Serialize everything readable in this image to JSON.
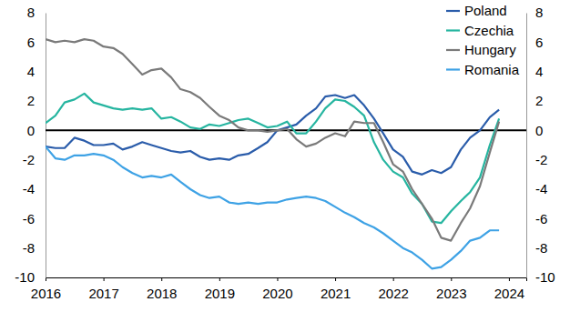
{
  "chart_data": {
    "type": "line",
    "x": [
      2016,
      2016.17,
      2016.33,
      2016.5,
      2016.67,
      2016.83,
      2017,
      2017.17,
      2017.33,
      2017.5,
      2017.67,
      2017.83,
      2018,
      2018.17,
      2018.33,
      2018.5,
      2018.67,
      2018.83,
      2019,
      2019.17,
      2019.33,
      2019.5,
      2019.67,
      2019.83,
      2020,
      2020.17,
      2020.33,
      2020.5,
      2020.67,
      2020.83,
      2021,
      2021.17,
      2021.33,
      2021.5,
      2021.67,
      2021.83,
      2022,
      2022.17,
      2022.33,
      2022.5,
      2022.67,
      2022.83,
      2023,
      2023.17,
      2023.33,
      2023.5,
      2023.67,
      2023.83
    ],
    "series": [
      {
        "name": "Poland",
        "color": "#2a5caa",
        "values": [
          -1.1,
          -1.2,
          -1.2,
          -0.5,
          -0.7,
          -1.0,
          -1.0,
          -0.9,
          -1.3,
          -1.1,
          -0.8,
          -1.0,
          -1.2,
          -1.4,
          -1.5,
          -1.4,
          -1.8,
          -2.0,
          -1.9,
          -2.0,
          -1.7,
          -1.6,
          -1.2,
          -0.8,
          0.0,
          0.2,
          0.4,
          1.0,
          1.5,
          2.3,
          2.4,
          2.2,
          2.4,
          1.7,
          0.8,
          -0.2,
          -1.3,
          -1.8,
          -2.8,
          -3.0,
          -2.7,
          -2.9,
          -2.5,
          -1.3,
          -0.5,
          0.0,
          0.9,
          1.4
        ]
      },
      {
        "name": "Czechia",
        "color": "#26b5a0",
        "values": [
          0.5,
          1.0,
          1.9,
          2.1,
          2.5,
          1.9,
          1.7,
          1.5,
          1.4,
          1.5,
          1.4,
          1.5,
          0.8,
          0.9,
          0.6,
          0.2,
          0.1,
          0.4,
          0.3,
          0.5,
          0.7,
          0.8,
          0.5,
          0.2,
          0.3,
          0.6,
          -0.2,
          -0.2,
          0.6,
          1.5,
          2.1,
          2.0,
          1.6,
          1.0,
          -0.8,
          -2.0,
          -2.8,
          -3.2,
          -4.3,
          -5.0,
          -6.2,
          -6.3,
          -5.5,
          -4.8,
          -4.2,
          -3.2,
          -1.0,
          0.8
        ]
      },
      {
        "name": "Hungary",
        "color": "#7a7a7a",
        "values": [
          6.2,
          6.0,
          6.1,
          6.0,
          6.2,
          6.1,
          5.7,
          5.6,
          5.2,
          4.5,
          3.8,
          4.1,
          4.2,
          3.6,
          2.8,
          2.6,
          2.2,
          1.6,
          1.0,
          0.7,
          0.2,
          0.0,
          0.0,
          -0.1,
          0.0,
          0.1,
          -0.6,
          -1.1,
          -0.9,
          -0.5,
          -0.2,
          -0.4,
          0.6,
          0.5,
          0.5,
          -0.8,
          -2.3,
          -2.8,
          -4.0,
          -5.0,
          -6.0,
          -7.3,
          -7.5,
          -6.3,
          -5.3,
          -3.8,
          -1.5,
          0.6
        ]
      },
      {
        "name": "Romania",
        "color": "#3ea2e5",
        "values": [
          -1.1,
          -1.9,
          -2.0,
          -1.7,
          -1.7,
          -1.6,
          -1.7,
          -2.0,
          -2.5,
          -2.9,
          -3.2,
          -3.1,
          -3.2,
          -3.0,
          -3.5,
          -4.0,
          -4.4,
          -4.6,
          -4.5,
          -4.9,
          -5.0,
          -4.9,
          -5.0,
          -4.9,
          -4.9,
          -4.7,
          -4.6,
          -4.5,
          -4.6,
          -4.8,
          -5.2,
          -5.6,
          -5.9,
          -6.3,
          -6.6,
          -7.0,
          -7.5,
          -8.0,
          -8.3,
          -8.8,
          -9.4,
          -9.3,
          -8.8,
          -8.2,
          -7.5,
          -7.3,
          -6.8,
          -6.8
        ]
      }
    ],
    "xlim": [
      2016,
      2024.3
    ],
    "xticks": [
      2016,
      2017,
      2018,
      2019,
      2020,
      2021,
      2022,
      2023,
      2024
    ],
    "ylim": [
      -10,
      8
    ],
    "yticks": [
      -10,
      -8,
      -6,
      -4,
      -2,
      0,
      2,
      4,
      6,
      8
    ],
    "y2lim": [
      -10,
      8
    ],
    "y2ticks": [
      -10,
      -8,
      -6,
      -4,
      -2,
      0,
      2,
      4,
      6,
      8
    ],
    "grid": false,
    "legend": "upper right"
  }
}
